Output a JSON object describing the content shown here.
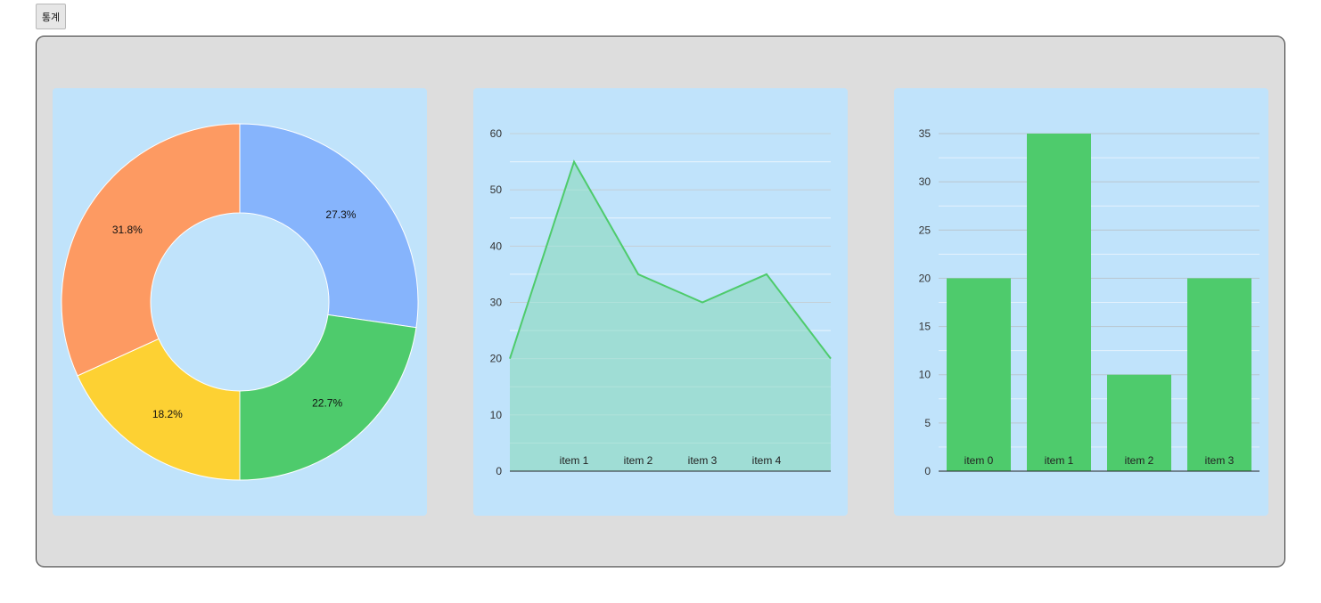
{
  "toolbar": {
    "stats_label": "통계"
  },
  "chart_data": [
    {
      "type": "pie",
      "variant": "donut",
      "slices": [
        {
          "label": "27.3%",
          "value": 27.3,
          "color": "#86b4fc"
        },
        {
          "label": "22.7%",
          "value": 22.7,
          "color": "#4ecb6c"
        },
        {
          "label": "18.2%",
          "value": 18.2,
          "color": "#fdd133"
        },
        {
          "label": "31.8%",
          "value": 31.8,
          "color": "#fd9a62"
        }
      ],
      "start": "top",
      "direction": "clockwise"
    },
    {
      "type": "area",
      "x": [
        "",
        "item 1",
        "item 2",
        "item 3",
        "item 4",
        ""
      ],
      "values": [
        20,
        55,
        35,
        30,
        35,
        20
      ],
      "ylim": [
        0,
        60
      ],
      "ticks": [
        0,
        10,
        20,
        30,
        40,
        50,
        60
      ],
      "line_color": "#4ecb6c",
      "fill_color": "#9ddcd3",
      "grid": true
    },
    {
      "type": "bar",
      "categories": [
        "item 0",
        "item 1",
        "item 2",
        "item 3"
      ],
      "values": [
        20,
        35,
        10,
        20
      ],
      "ylim": [
        0,
        35
      ],
      "ticks": [
        0,
        5,
        10,
        15,
        20,
        25,
        30,
        35
      ],
      "bar_color": "#4ecb6c",
      "grid": true
    }
  ]
}
